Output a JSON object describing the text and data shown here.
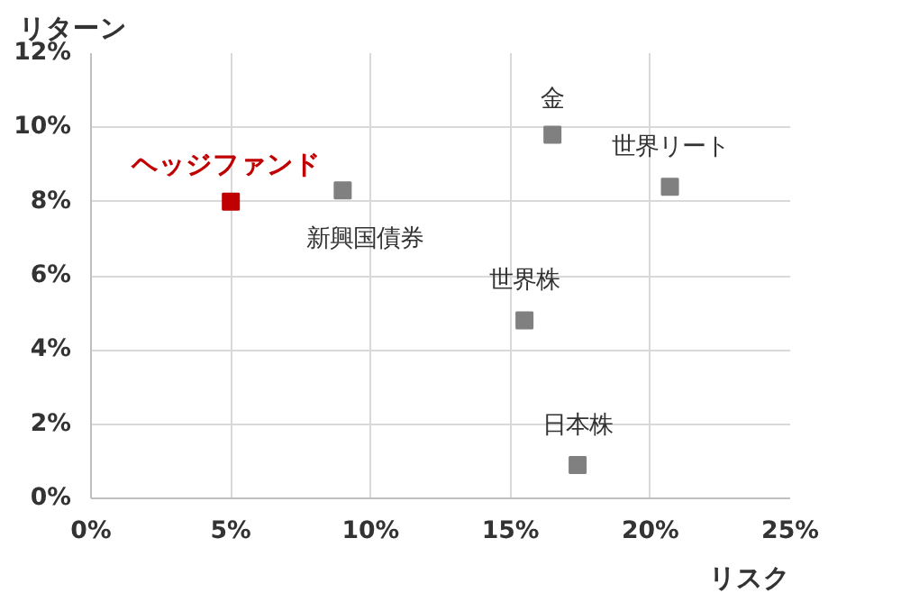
{
  "chart_data": {
    "type": "scatter",
    "ylabel": "リターン",
    "xlabel": "リスク",
    "xlim": [
      0,
      25
    ],
    "ylim": [
      0,
      12
    ],
    "xticks": [
      {
        "value": 0,
        "label": "0%"
      },
      {
        "value": 5,
        "label": "5%"
      },
      {
        "value": 10,
        "label": "10%"
      },
      {
        "value": 15,
        "label": "15%"
      },
      {
        "value": 20,
        "label": "20%"
      },
      {
        "value": 25,
        "label": "25%"
      }
    ],
    "yticks": [
      {
        "value": 0,
        "label": "0%"
      },
      {
        "value": 2,
        "label": "2%"
      },
      {
        "value": 4,
        "label": "4%"
      },
      {
        "value": 6,
        "label": "6%"
      },
      {
        "value": 8,
        "label": "8%"
      },
      {
        "value": 10,
        "label": "10%"
      },
      {
        "value": 12,
        "label": "12%"
      }
    ],
    "grid": true,
    "marker": "square",
    "series": [
      {
        "name": "ヘッジファンド",
        "color": "#c00000",
        "x": [
          5.0
        ],
        "values": [
          8.0
        ]
      },
      {
        "name": "新興国債券",
        "color": "#808080",
        "x": [
          9.0
        ],
        "values": [
          8.3
        ]
      },
      {
        "name": "金",
        "color": "#808080",
        "x": [
          16.5
        ],
        "values": [
          9.8
        ]
      },
      {
        "name": "世界リート",
        "color": "#808080",
        "x": [
          20.7
        ],
        "values": [
          8.4
        ]
      },
      {
        "name": "世界株",
        "color": "#808080",
        "x": [
          15.5
        ],
        "values": [
          4.8
        ]
      },
      {
        "name": "日本株",
        "color": "#808080",
        "x": [
          17.4
        ],
        "values": [
          0.9
        ]
      }
    ]
  }
}
